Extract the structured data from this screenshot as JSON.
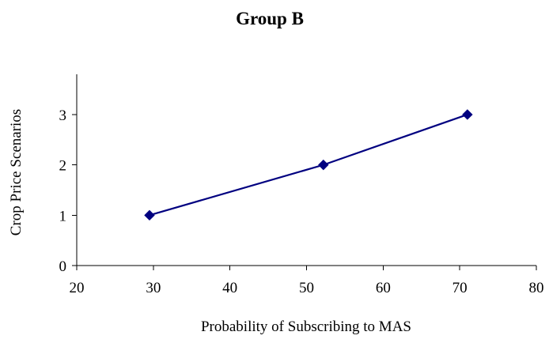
{
  "chart_data": {
    "type": "line",
    "title": "Group B",
    "xlabel": "Probability of Subscribing to MAS",
    "ylabel": "Crop Price Scenarios",
    "xlim": [
      20,
      80
    ],
    "ylim": [
      0,
      3.8
    ],
    "x_ticks": [
      20,
      30,
      40,
      50,
      60,
      70,
      80
    ],
    "y_ticks": [
      0,
      1,
      2,
      3
    ],
    "grid": false,
    "legend": "none",
    "series": [
      {
        "x": [
          29.5,
          52.2,
          71.0
        ],
        "y": [
          1,
          2,
          3
        ],
        "color": "#000080",
        "marker": "diamond"
      }
    ]
  }
}
